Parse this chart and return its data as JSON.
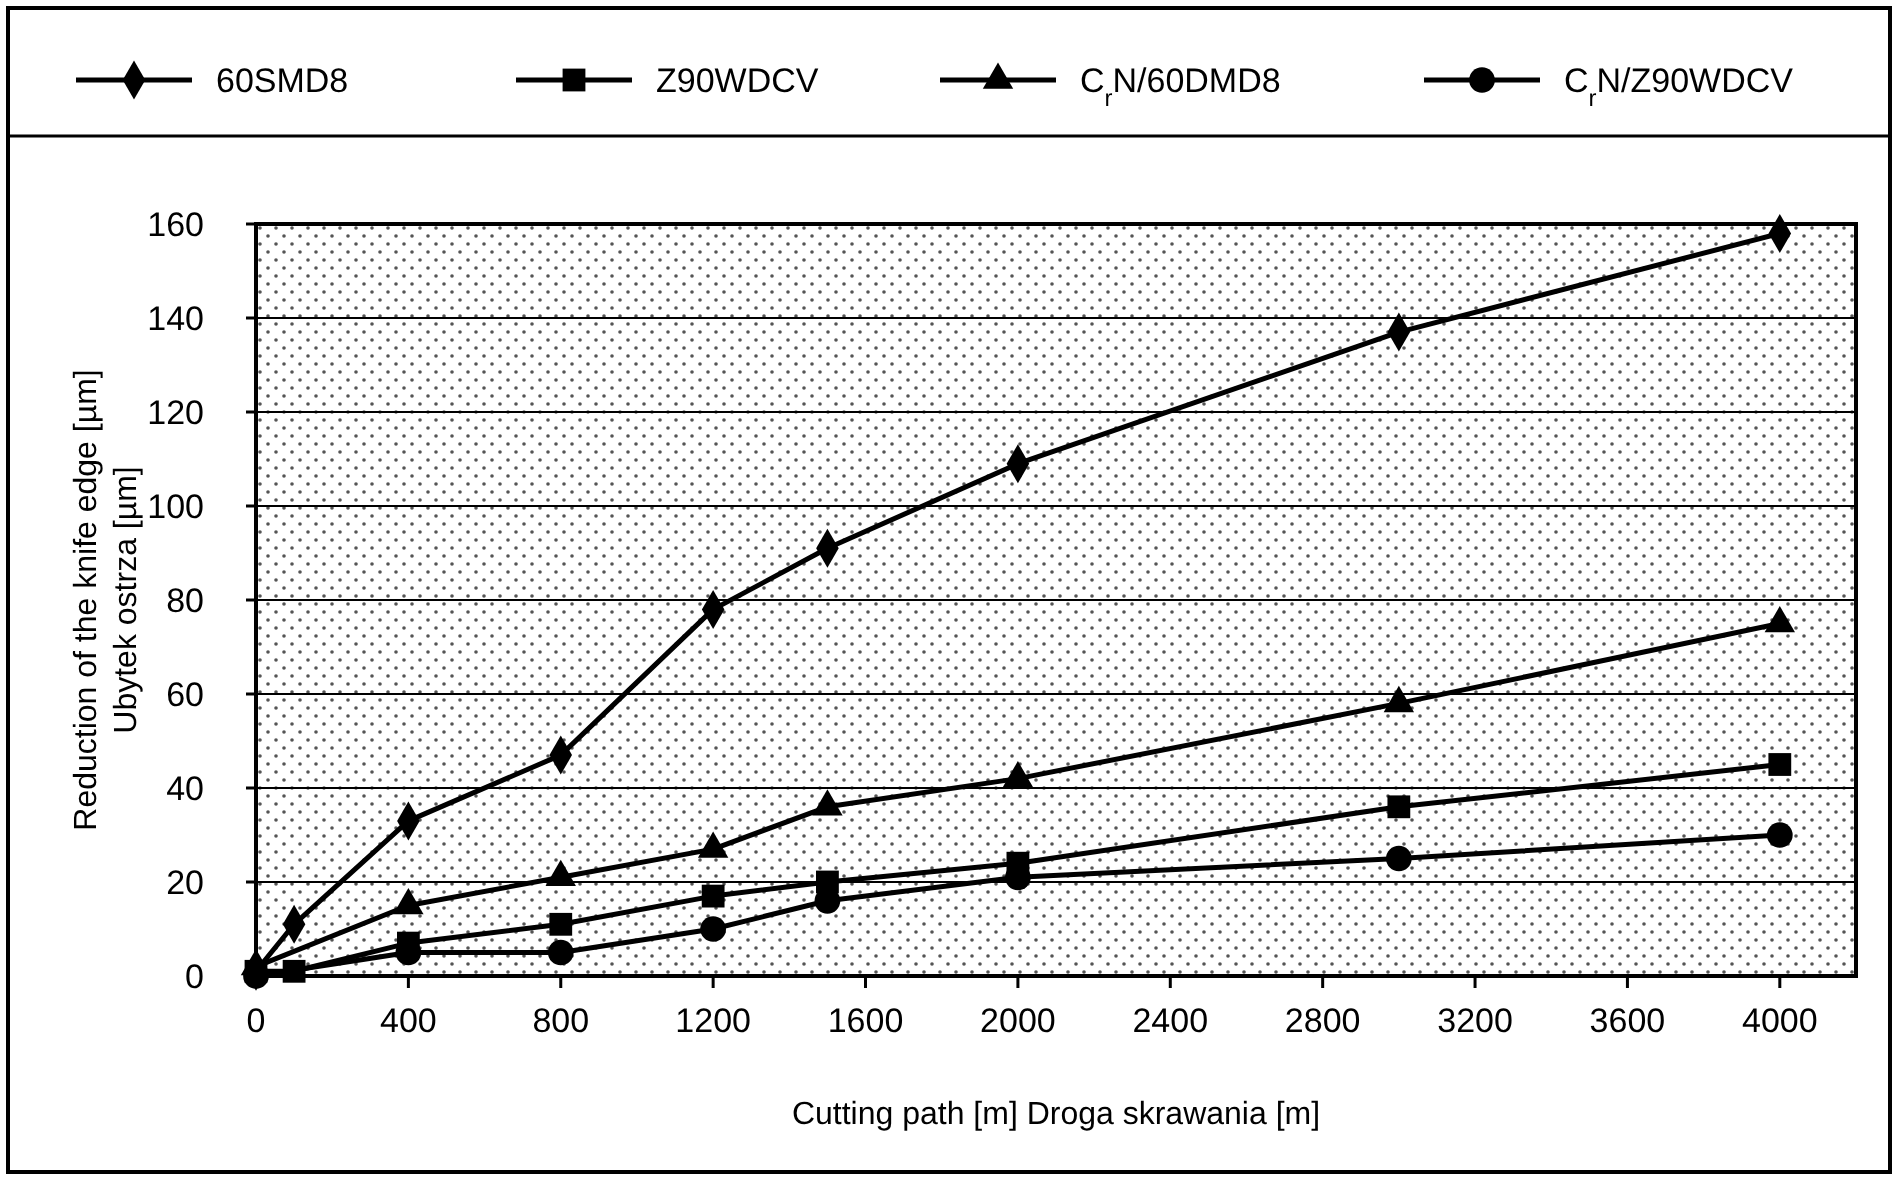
{
  "chart_data": {
    "type": "line",
    "xlabel": "Cutting path [m]  Droga skrawania [m]",
    "ylabel": "Reduction of the knife edge [µm]\nUbytek ostrza [µm]",
    "xlim": [
      0,
      4200
    ],
    "xticks": [
      0,
      400,
      800,
      1200,
      1600,
      2000,
      2400,
      2800,
      3200,
      3600,
      4000
    ],
    "ylim": [
      0,
      160
    ],
    "yticks": [
      0,
      20,
      40,
      60,
      80,
      100,
      120,
      140,
      160
    ],
    "grid": "y",
    "legend": "top",
    "line_style": "solid",
    "series": [
      {
        "name": "60SMD8",
        "color": "#000000",
        "marker": "diamond",
        "x": [
          0,
          100,
          400,
          800,
          1200,
          1500,
          2000,
          3000,
          4000
        ],
        "values": [
          1,
          11,
          33,
          47,
          78,
          91,
          109,
          137,
          158
        ]
      },
      {
        "name": "Z90WDCV",
        "color": "#000000",
        "marker": "square",
        "x": [
          0,
          100,
          400,
          800,
          1200,
          1500,
          2000,
          3000,
          4000
        ],
        "values": [
          1,
          1,
          7,
          11,
          17,
          20,
          24,
          36,
          45
        ]
      },
      {
        "name": "C$_{r}$N/60DMD8",
        "color": "#000000",
        "marker": "triangle",
        "x": [
          0,
          400,
          800,
          1200,
          1500,
          2000,
          3000,
          4000
        ],
        "values": [
          2,
          15,
          21,
          27,
          36,
          42,
          58,
          75
        ]
      },
      {
        "name": "C$_{r}$N/Z90WDCV",
        "color": "#000000",
        "marker": "circle",
        "x": [
          0,
          400,
          800,
          1200,
          1500,
          2000,
          3000,
          4000
        ],
        "values": [
          0,
          5,
          5,
          10,
          16,
          21,
          25,
          30
        ]
      }
    ]
  }
}
